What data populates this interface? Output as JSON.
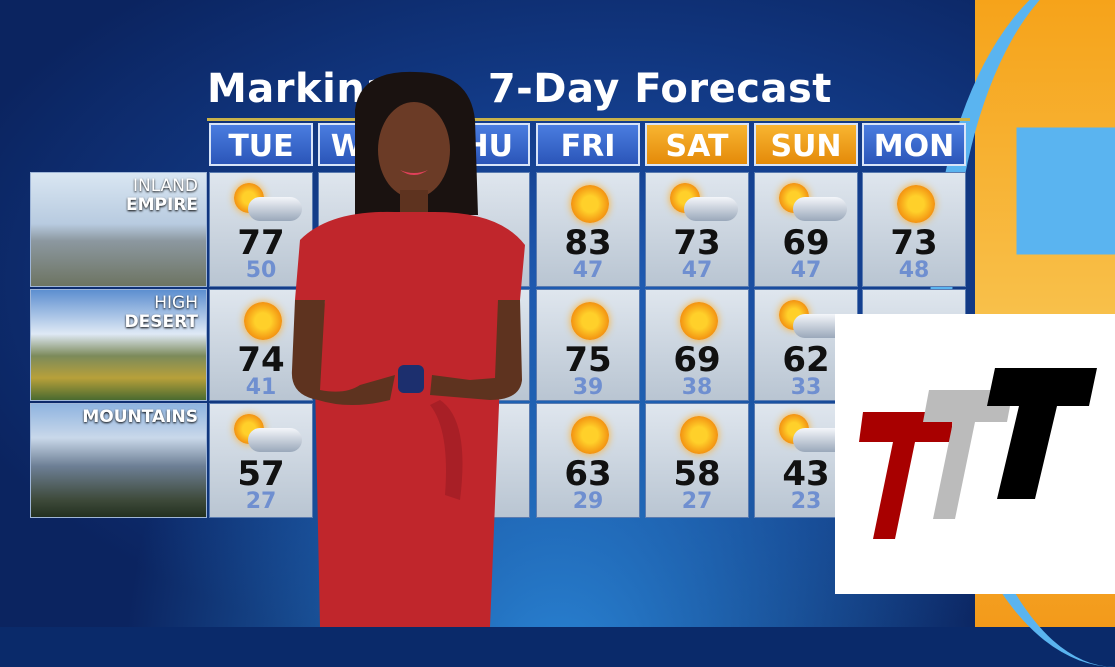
{
  "title": "Markina's 7-Day Forecast",
  "title_visible": [
    "Markina",
    "7-Day Forecast"
  ],
  "days": [
    {
      "label": "TUE",
      "weekend": false
    },
    {
      "label": "WED",
      "weekend": false
    },
    {
      "label": "THU",
      "weekend": false
    },
    {
      "label": "FRI",
      "weekend": false
    },
    {
      "label": "SAT",
      "weekend": true
    },
    {
      "label": "SUN",
      "weekend": true
    },
    {
      "label": "MON",
      "weekend": false
    }
  ],
  "regions": [
    {
      "line1": "INLAND",
      "line2": "EMPIRE"
    },
    {
      "line1": "HIGH",
      "line2": "DESERT"
    },
    {
      "line1": "",
      "line2": "MOUNTAINS"
    }
  ],
  "forecast": [
    [
      {
        "icon": "partly-cloudy-icon",
        "hi": "77",
        "lo": "50"
      },
      null,
      null,
      {
        "icon": "sunny-icon",
        "hi": "83",
        "lo": "47"
      },
      {
        "icon": "partly-cloudy-icon",
        "hi": "73",
        "lo": "47"
      },
      {
        "icon": "partly-cloudy-icon",
        "hi": "69",
        "lo": "47"
      },
      {
        "icon": "sunny-icon",
        "hi": "73",
        "lo": "48"
      }
    ],
    [
      {
        "icon": "sunny-icon",
        "hi": "74",
        "lo": "41"
      },
      null,
      null,
      {
        "icon": "sunny-icon",
        "hi": "75",
        "lo": "39"
      },
      {
        "icon": "sunny-icon",
        "hi": "69",
        "lo": "38"
      },
      {
        "icon": "partly-cloudy-icon",
        "hi": "62",
        "lo": "33"
      },
      null
    ],
    [
      {
        "icon": "partly-cloudy-icon",
        "hi": "57",
        "lo": "27"
      },
      null,
      null,
      {
        "icon": "sunny-icon",
        "hi": "63",
        "lo": "29"
      },
      {
        "icon": "sunny-icon",
        "hi": "58",
        "lo": "27"
      },
      {
        "icon": "partly-cloudy-icon",
        "hi": "43",
        "lo": "23"
      },
      null
    ]
  ],
  "colors": {
    "day_header": "#3565c8",
    "weekend_header": "#f3a01c",
    "low_temp": "#6f8fd0",
    "dress": "#c0262c",
    "logo_red": "#a80000",
    "logo_gray": "#bbbbbb",
    "logo_black": "#000000"
  }
}
